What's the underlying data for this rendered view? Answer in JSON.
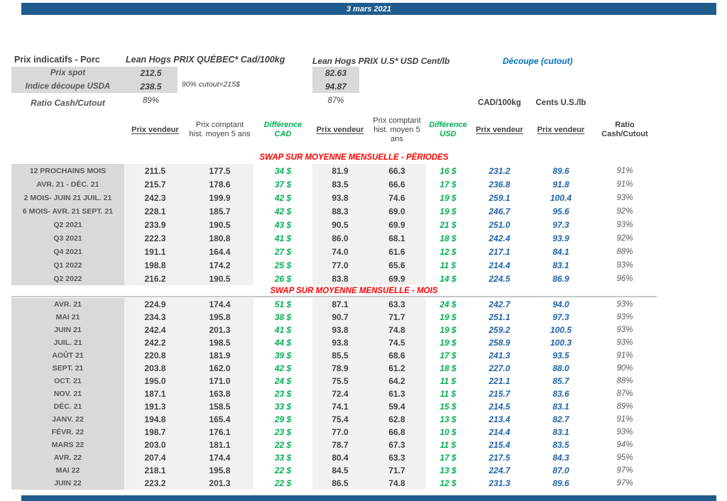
{
  "banner": {
    "date": "3 mars 2021"
  },
  "colors": {
    "banner_blue": "#1F5C8D",
    "value_blue": "#1E62A8",
    "cutout_title_blue": "#0070C0",
    "positive_green": "#00B050",
    "section_red": "#FF0000",
    "label_bg_gray": "#D9D9D9",
    "cell_bg_gray": "#F1F1F0"
  },
  "header": {
    "title": "Prix indicatifs - Porc",
    "quebec_title": "Lean Hogs PRIX QUÉBEC* Cad/100kg",
    "us_title": "Lean Hogs PRIX U.S* USD Cent/lb",
    "cutout_title": "Découpe (cutout)",
    "spot_label": "Prix spot",
    "spot_cad": "212.5",
    "spot_usd": "82.63",
    "usda_label": "Indice découpe USDA",
    "usda_cad": "238.5",
    "usda_usd": "94.87",
    "cutout_note": "90% cutout=215$",
    "ratio_label": "Ratio Cash/Cutout",
    "ratio_cad": "89%",
    "ratio_usd": "87%"
  },
  "columns": {
    "group_cad": "CAD/100kg",
    "group_cents": "Cents U.S./lb",
    "h_prix_vendeur_cad": "Prix vendeur",
    "h_prix_comptant_cad": "Prix comptant hist. moyen 5 ans",
    "h_difference_cad": "Différence CAD",
    "h_prix_vendeur_usd": "Prix vendeur",
    "h_prix_comptant_usd": "Prix comptant hist. moyen 5 ans",
    "h_difference_usd": "Différence USD",
    "h_cutout_cad": "Prix vendeur",
    "h_cutout_cents": "Prix vendeur",
    "h_ratio": "Ratio Cash/Cutout"
  },
  "table": {
    "cell_names": [
      "row-label",
      "prix-vendeur-cad",
      "prix-comptant-cad",
      "difference-cad",
      "prix-vendeur-usd",
      "prix-comptant-usd",
      "difference-usd",
      "cutout-prix-vendeur-cad",
      "cutout-prix-vendeur-cents",
      "ratio-cash-cutout"
    ],
    "cell_classes": [
      "c-lbl",
      "c-num",
      "c-num",
      "c-diff",
      "c-num",
      "c-num",
      "c-diff",
      "c-blue",
      "c-blue",
      "c-ratio"
    ]
  },
  "sections": [
    {
      "title": "SWAP SUR MOYENNE MENSUELLE - PÉRIODES",
      "divided": false,
      "rows_class": "periods",
      "rows": [
        [
          "12 PROCHAINS MOIS",
          "211.5",
          "177.5",
          "34 $",
          "81.9",
          "66.3",
          "16 $",
          "231.2",
          "89.6",
          "91%"
        ],
        [
          "AVR. 21 -  DÉC. 21",
          "215.7",
          "178.6",
          "37 $",
          "83.5",
          "66.6",
          "17 $",
          "236.8",
          "91.8",
          "91%"
        ],
        [
          "2 MOIS- JUIN 21 JUIL. 21",
          "242.3",
          "199.9",
          "42 $",
          "93.8",
          "74.6",
          "19 $",
          "259.1",
          "100.4",
          "93%"
        ],
        [
          "6 MOIS- AVR. 21 SEPT. 21",
          "228.1",
          "185.7",
          "42 $",
          "88.3",
          "69.0",
          "19 $",
          "246.7",
          "95.6",
          "92%"
        ],
        [
          "Q2 2021",
          "233.9",
          "190.5",
          "43 $",
          "90.5",
          "69.9",
          "21 $",
          "251.0",
          "97.3",
          "93%"
        ],
        [
          "Q3 2021",
          "222.3",
          "180.8",
          "41 $",
          "86.0",
          "68.1",
          "18 $",
          "242.4",
          "93.9",
          "92%"
        ],
        [
          "Q4 2021",
          "191.1",
          "164.4",
          "27 $",
          "74.0",
          "61.6",
          "12 $",
          "217.1",
          "84.1",
          "88%"
        ],
        [
          "Q1 2022",
          "198.8",
          "174.2",
          "25 $",
          "77.0",
          "65.6",
          "11 $",
          "214.4",
          "83.1",
          "93%"
        ],
        [
          "Q2 2022",
          "216.2",
          "190.5",
          "26 $",
          "83.8",
          "69.9",
          "14 $",
          "224.5",
          "86.9",
          "96%"
        ]
      ]
    },
    {
      "title": "SWAP SUR MOYENNE MENSUELLE - MOIS",
      "divided": true,
      "rows_class": "months",
      "rows": [
        [
          "AVR. 21",
          "224.9",
          "174.4",
          "51 $",
          "87.1",
          "63.3",
          "24 $",
          "242.7",
          "94.0",
          "93%"
        ],
        [
          "MAI 21",
          "234.3",
          "195.8",
          "38 $",
          "90.7",
          "71.7",
          "19 $",
          "251.1",
          "97.3",
          "93%"
        ],
        [
          "JUIN 21",
          "242.4",
          "201.3",
          "41 $",
          "93.8",
          "74.8",
          "19 $",
          "259.2",
          "100.5",
          "93%"
        ],
        [
          "JUIL. 21",
          "242.2",
          "198.5",
          "44 $",
          "93.8",
          "74.5",
          "19 $",
          "258.9",
          "100.3",
          "93%"
        ],
        [
          "AOÛT 21",
          "220.8",
          "181.9",
          "39 $",
          "85.5",
          "68.6",
          "17 $",
          "241.3",
          "93.5",
          "91%"
        ],
        [
          "SEPT. 21",
          "203.8",
          "162.0",
          "42 $",
          "78.9",
          "61.2",
          "18 $",
          "227.0",
          "88.0",
          "90%"
        ],
        [
          "OCT. 21",
          "195.0",
          "171.0",
          "24 $",
          "75.5",
          "64.2",
          "11 $",
          "221.1",
          "85.7",
          "88%"
        ],
        [
          "NOV. 21",
          "187.1",
          "163.8",
          "23 $",
          "72.4",
          "61.3",
          "11 $",
          "215.7",
          "83.6",
          "87%"
        ],
        [
          "DÉC. 21",
          "191.3",
          "158.5",
          "33 $",
          "74.1",
          "59.4",
          "15 $",
          "214.5",
          "83.1",
          "89%"
        ],
        [
          "JANV. 22",
          "194.8",
          "165.4",
          "29 $",
          "75.4",
          "62.8",
          "13 $",
          "213.4",
          "82.7",
          "91%"
        ],
        [
          "FÉVR. 22",
          "198.7",
          "176.1",
          "23 $",
          "77.0",
          "66.8",
          "10 $",
          "214.4",
          "83.1",
          "93%"
        ],
        [
          "MARS 22",
          "203.0",
          "181.1",
          "22 $",
          "78.7",
          "67.3",
          "11 $",
          "215.4",
          "83.5",
          "94%"
        ],
        [
          "AVR. 22",
          "207.4",
          "174.4",
          "33 $",
          "80.4",
          "63.3",
          "17 $",
          "217.5",
          "84.3",
          "95%"
        ],
        [
          "MAI 22",
          "218.1",
          "195.8",
          "22 $",
          "84.5",
          "71.7",
          "13 $",
          "224.7",
          "87.0",
          "97%"
        ],
        [
          "JUIN 22",
          "223.2",
          "201.3",
          "22 $",
          "86.5",
          "74.8",
          "12 $",
          "231.3",
          "89.6",
          "97%"
        ]
      ]
    }
  ]
}
